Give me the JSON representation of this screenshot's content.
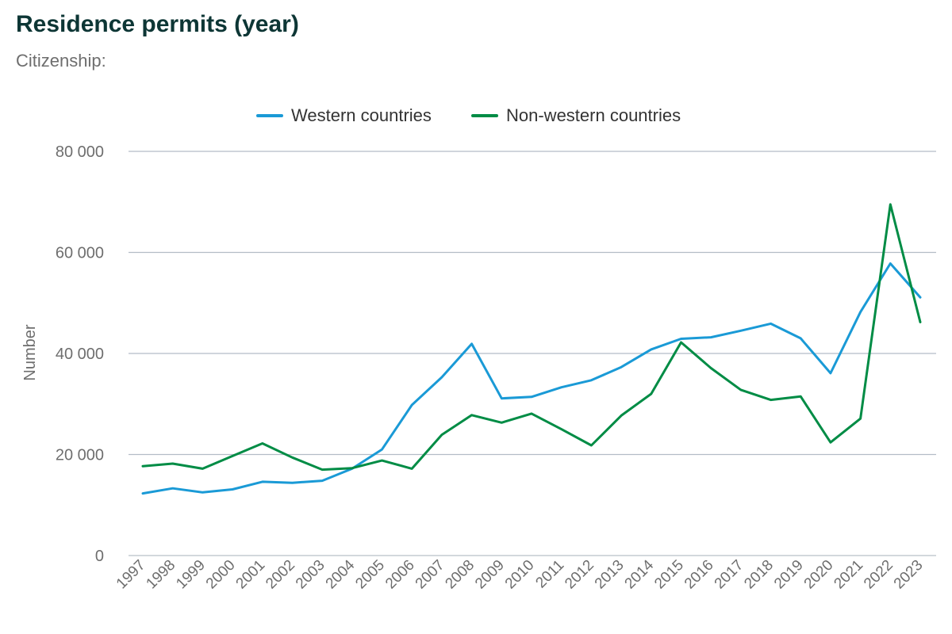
{
  "chart_data": {
    "type": "line",
    "title": "Residence permits (year)",
    "subtitle": "Citizenship:",
    "xlabel": "",
    "ylabel": "Number",
    "ylim": [
      0,
      80000
    ],
    "yticks": [
      0,
      20000,
      40000,
      60000,
      80000
    ],
    "ytick_labels": [
      "0",
      "20 000",
      "40 000",
      "60 000",
      "80 000"
    ],
    "grid": true,
    "legend_position": "top-center",
    "x": [
      "1997",
      "1998",
      "1999",
      "2000",
      "2001",
      "2002",
      "2003",
      "2004",
      "2005",
      "2006",
      "2007",
      "2008",
      "2009",
      "2010",
      "2011",
      "2012",
      "2013",
      "2014",
      "2015",
      "2016",
      "2017",
      "2018",
      "2019",
      "2020",
      "2021",
      "2022",
      "2023"
    ],
    "series": [
      {
        "name": "Western countries",
        "color": "#1a9ad6",
        "values": [
          12300,
          13300,
          12500,
          13100,
          14600,
          14400,
          14800,
          17200,
          21000,
          29800,
          35300,
          41900,
          31100,
          31400,
          33300,
          34700,
          37300,
          40800,
          42900,
          43200,
          44500,
          45900,
          43000,
          36100,
          48200,
          57800,
          51100
        ]
      },
      {
        "name": "Non-western countries",
        "color": "#008c45",
        "values": [
          17700,
          18200,
          17200,
          19700,
          22200,
          19400,
          17000,
          17300,
          18800,
          17200,
          23900,
          27800,
          26300,
          28100,
          25000,
          21800,
          27700,
          32000,
          42200,
          37100,
          32800,
          30800,
          31500,
          22400,
          27100,
          69500,
          46200
        ]
      }
    ]
  }
}
